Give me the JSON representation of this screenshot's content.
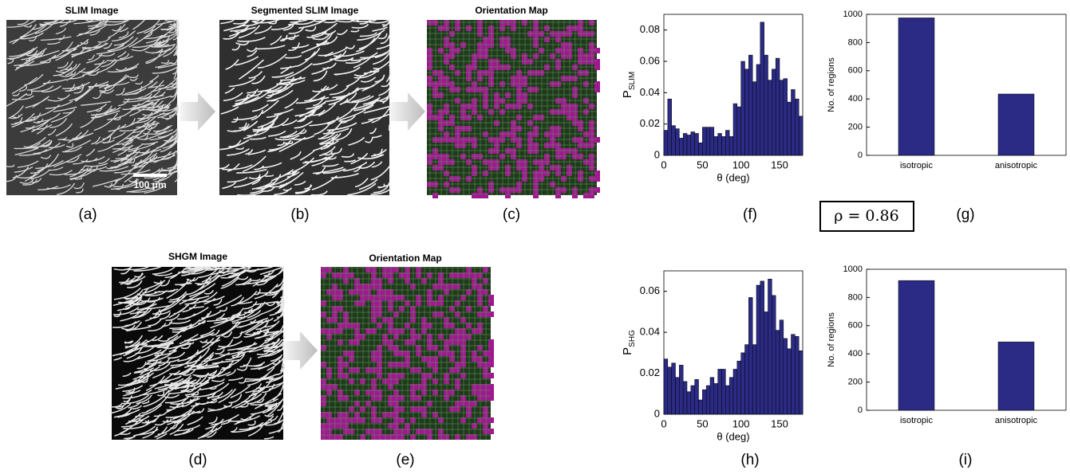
{
  "panels": {
    "a_title": "SLIM Image",
    "b_title": "Segmented SLIM Image",
    "c_title": "Orientation Map",
    "d_title": "SHGM Image",
    "e_title": "Orientation Map",
    "scale_bar": "100 μm",
    "labels": [
      "(a)",
      "(b)",
      "(c)",
      "(d)",
      "(e)",
      "(f)",
      "(g)",
      "(h)",
      "(i)"
    ],
    "correlation": "ρ = 0.86"
  },
  "chart_data": [
    {
      "type": "histogram",
      "y_label": "P",
      "y_label_sub": "SLIM",
      "x_label": "θ (deg)",
      "color": "#2b2b86",
      "bins": [
        0,
        5,
        10,
        15,
        20,
        25,
        30,
        35,
        40,
        45,
        50,
        55,
        60,
        65,
        70,
        75,
        80,
        85,
        90,
        95,
        100,
        105,
        110,
        115,
        120,
        125,
        130,
        135,
        140,
        145,
        150,
        155,
        160,
        165,
        170,
        175,
        180
      ],
      "values": [
        0.016,
        0.036,
        0.019,
        0.017,
        0.011,
        0.014,
        0.013,
        0.015,
        0.014,
        0.008,
        0.018,
        0.018,
        0.018,
        0.012,
        0.014,
        0.012,
        0.016,
        0.012,
        0.033,
        0.031,
        0.06,
        0.055,
        0.064,
        0.047,
        0.058,
        0.085,
        0.064,
        0.048,
        0.055,
        0.062,
        0.048,
        0.049,
        0.034,
        0.042,
        0.036,
        0.025
      ],
      "xlim": [
        0,
        180
      ],
      "xticks": [
        0,
        50,
        100,
        150
      ],
      "ylim": [
        0,
        0.09
      ],
      "yticks": [
        0,
        0.02,
        0.04,
        0.06,
        0.08
      ]
    },
    {
      "type": "bar",
      "y_label": "No. of regions",
      "color": "#2b2b86",
      "categories": [
        "isotropic",
        "anisotropic"
      ],
      "values": [
        975,
        435
      ],
      "ylim": [
        0,
        1000
      ],
      "yticks": [
        0,
        200,
        400,
        600,
        800,
        1000
      ]
    },
    {
      "type": "histogram",
      "y_label": "P",
      "y_label_sub": "SHG",
      "x_label": "θ (deg)",
      "color": "#2b2b86",
      "bins": [
        0,
        5,
        10,
        15,
        20,
        25,
        30,
        35,
        40,
        45,
        50,
        55,
        60,
        65,
        70,
        75,
        80,
        85,
        90,
        95,
        100,
        105,
        110,
        115,
        120,
        125,
        130,
        135,
        140,
        145,
        150,
        155,
        160,
        165,
        170,
        175,
        180
      ],
      "values": [
        0.027,
        0.023,
        0.025,
        0.018,
        0.024,
        0.016,
        0.011,
        0.014,
        0.017,
        0.007,
        0.012,
        0.014,
        0.018,
        0.015,
        0.022,
        0.022,
        0.014,
        0.018,
        0.022,
        0.026,
        0.03,
        0.034,
        0.057,
        0.034,
        0.063,
        0.065,
        0.05,
        0.066,
        0.058,
        0.041,
        0.046,
        0.037,
        0.032,
        0.039,
        0.038,
        0.031
      ],
      "xlim": [
        0,
        180
      ],
      "xticks": [
        0,
        50,
        100,
        150
      ],
      "ylim": [
        0,
        0.07
      ],
      "yticks": [
        0,
        0.02,
        0.04,
        0.06
      ]
    },
    {
      "type": "bar",
      "y_label": "No. of regions",
      "color": "#2b2b86",
      "categories": [
        "isotropic",
        "anisotropic"
      ],
      "values": [
        920,
        485
      ],
      "ylim": [
        0,
        1000
      ],
      "yticks": [
        0,
        200,
        400,
        600,
        800,
        1000
      ]
    }
  ]
}
